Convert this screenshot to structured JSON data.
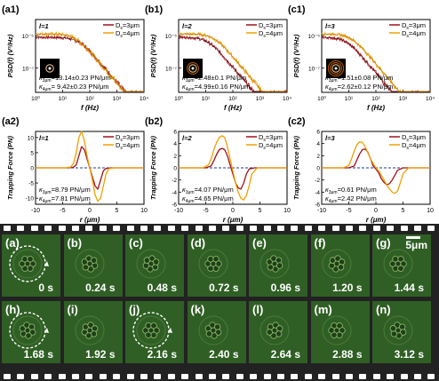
{
  "colors": {
    "c3": "#a0101a",
    "c4": "#f0a000",
    "frame_bg": "#2f5f24",
    "film": "#222222"
  },
  "chart_data": [
    {
      "id": "a1",
      "type": "line",
      "panel_label": "(a1)",
      "charge": "l=1",
      "xlabel": "f (Hz)",
      "ylabel": "PSD(f) (V²/Hz)",
      "xscale": "log",
      "yscale": "log",
      "xlim": [
        1,
        10000
      ],
      "series": [
        {
          "name": "Ds=3μm",
          "color": "#a0101a"
        },
        {
          "name": "Ds=4μm",
          "color": "#f0a000"
        }
      ],
      "stiffness": [
        {
          "label": "κ3μm",
          "value": "=13.14±0.23 PN/μm"
        },
        {
          "label": "κ4μm",
          "value": "= 9.42±0.23 PN/μm"
        }
      ],
      "fc": [
        40,
        30
      ]
    },
    {
      "id": "b1",
      "type": "line",
      "panel_label": "(b1)",
      "charge": "l=2",
      "xlabel": "f (Hz)",
      "ylabel": "PSD(f) (V²/Hz)",
      "xscale": "log",
      "yscale": "log",
      "xlim": [
        1,
        10000
      ],
      "series": [
        {
          "name": "Ds=3μm",
          "color": "#a0101a"
        },
        {
          "name": "Ds=4μm",
          "color": "#f0a000"
        }
      ],
      "stiffness": [
        {
          "label": "κ3μm",
          "value": "=2.48±0.1 PN/μm"
        },
        {
          "label": "κ4μm",
          "value": "=4.99±0.16 PN/μm"
        }
      ],
      "fc": [
        12,
        20
      ]
    },
    {
      "id": "c1",
      "type": "line",
      "panel_label": "(c1)",
      "charge": "l=3",
      "xlabel": "f (Hz)",
      "ylabel": "PSD(f) (V²/Hz)",
      "xscale": "log",
      "yscale": "log",
      "xlim": [
        1,
        10000
      ],
      "series": [
        {
          "name": "Ds=3μm",
          "color": "#a0101a"
        },
        {
          "name": "Ds=4μm",
          "color": "#f0a000"
        }
      ],
      "stiffness": [
        {
          "label": "κ3μm",
          "value": "=1.51±0.08 PN/μm"
        },
        {
          "label": "κ4μm",
          "value": "=2.62±0.12 PN/μm"
        }
      ],
      "fc": [
        8,
        12
      ]
    },
    {
      "id": "a2",
      "type": "line",
      "panel_label": "(a2)",
      "charge": "l=1",
      "xlabel": "r (μm)",
      "ylabel": "Trapping Force (PN)",
      "xlim": [
        -10,
        10
      ],
      "ylim": [
        -12,
        12
      ],
      "xticks": [
        -10,
        -5,
        0,
        5,
        10
      ],
      "yticks": [
        -10,
        -5,
        0,
        5,
        10
      ],
      "series": [
        {
          "name": "Ds=3μm",
          "color": "#a0101a",
          "x": [
            -10,
            -4,
            -3,
            -2.5,
            -2,
            -1.5,
            -1,
            -0.5,
            0,
            0.5,
            1,
            1.5,
            2,
            2.5,
            3,
            4,
            10
          ],
          "y": [
            0,
            0,
            0.2,
            1,
            4,
            7,
            6,
            3,
            0,
            -3,
            -6,
            -7,
            -4,
            -1,
            -0.2,
            0,
            0
          ]
        },
        {
          "name": "Ds=4μm",
          "color": "#f0a000",
          "x": [
            -10,
            -4.5,
            -3.5,
            -3,
            -2.5,
            -2,
            -1.5,
            -1,
            -0.5,
            0,
            0.5,
            1,
            1.5,
            2,
            2.5,
            3,
            3.5,
            4.5,
            10
          ],
          "y": [
            0,
            0,
            0.3,
            1.5,
            5,
            10,
            12,
            9,
            4,
            0,
            -4,
            -9,
            -11,
            -10,
            -6,
            -2,
            -0.3,
            0,
            0
          ]
        }
      ],
      "stiffness": [
        {
          "label": "κ3μm",
          "value": "=8.79 PN/μm"
        },
        {
          "label": "κ4μm",
          "value": "=7.81 PN/μm"
        }
      ]
    },
    {
      "id": "b2",
      "type": "line",
      "panel_label": "(b2)",
      "charge": "l=2",
      "xlabel": "r (μm)",
      "ylabel": "Trapping Force (PN)",
      "xlim": [
        -10,
        10
      ],
      "ylim": [
        -6,
        6
      ],
      "xticks": [
        -10,
        -5,
        0,
        5,
        10
      ],
      "yticks": [
        -6,
        -4,
        -2,
        0,
        2,
        4,
        6
      ],
      "series": [
        {
          "name": "Ds=3μm",
          "color": "#a0101a",
          "x": [
            -10,
            -5,
            -4,
            -3.5,
            -3,
            -2.5,
            -2,
            -1.5,
            -1,
            -0.5,
            0,
            0.5,
            1,
            1.5,
            2,
            2.5,
            3,
            4,
            10
          ],
          "y": [
            0,
            0,
            0.3,
            1.2,
            2.2,
            3,
            3.2,
            3,
            2,
            0.5,
            -1,
            -2.5,
            -3.3,
            -3.5,
            -2.5,
            -1,
            -0.2,
            0,
            0
          ]
        },
        {
          "name": "Ds=4μm",
          "color": "#f0a000",
          "x": [
            -10,
            -5.5,
            -4.5,
            -4,
            -3.5,
            -3,
            -2.5,
            -2,
            -1.5,
            -1,
            -0.5,
            0,
            0.5,
            1,
            1.5,
            2,
            2.5,
            3,
            3.5,
            4.5,
            10
          ],
          "y": [
            0,
            0,
            0.5,
            1.5,
            3,
            4.2,
            5,
            5.3,
            5,
            3.5,
            1.5,
            -0.5,
            -2.5,
            -4,
            -5,
            -5.3,
            -4.5,
            -3,
            -1,
            0,
            0
          ]
        }
      ],
      "stiffness": [
        {
          "label": "κ3μm",
          "value": "=4.07 PN/μm"
        },
        {
          "label": "κ4μm",
          "value": "=4.65 PN/μm"
        }
      ]
    },
    {
      "id": "c2",
      "type": "line",
      "panel_label": "(c2)",
      "charge": "l=3",
      "xlabel": "r (μm)",
      "ylabel": "Trapping Force (PN)",
      "xlim": [
        -10,
        10
      ],
      "ylim": [
        -6,
        6
      ],
      "xticks": [
        -10,
        -5,
        0,
        5,
        10
      ],
      "yticks": [
        -6,
        -4,
        -2,
        0,
        2,
        4,
        6
      ],
      "series": [
        {
          "name": "Ds=3μm",
          "color": "#a0101a",
          "x": [
            -10,
            -5,
            -4,
            -3.5,
            -3,
            -2.5,
            -2,
            -1.5,
            -1,
            -0.5,
            0,
            0.5,
            1,
            1.5,
            2,
            2.5,
            3,
            3.5,
            4,
            5,
            10
          ],
          "y": [
            0,
            0,
            0.3,
            1.3,
            2.3,
            3,
            3.1,
            2.6,
            1.5,
            0.3,
            -0.2,
            -0.8,
            -1.8,
            -2.4,
            -2.8,
            -2.6,
            -2,
            -1.2,
            -0.4,
            0,
            0
          ]
        },
        {
          "name": "Ds=4μm",
          "color": "#f0a000",
          "x": [
            -10,
            -6,
            -5,
            -4.5,
            -4,
            -3.5,
            -3,
            -2.5,
            -2,
            -1.5,
            -1,
            -0.5,
            0,
            0.5,
            1,
            1.5,
            2,
            2.5,
            3,
            3.5,
            4,
            4.5,
            5,
            6,
            10
          ],
          "y": [
            0,
            0,
            0.4,
            1.5,
            2.8,
            3.8,
            4.3,
            4.2,
            3.5,
            2.5,
            1.5,
            0.7,
            0,
            -0.5,
            -1.2,
            -2,
            -2.8,
            -3.5,
            -4,
            -4.2,
            -3.8,
            -2.5,
            -1,
            0,
            0
          ]
        }
      ],
      "stiffness": [
        {
          "label": "κ3μm",
          "value": "=0.61 PN/μm"
        },
        {
          "label": "κ4μm",
          "value": "=2.42 PN/μm"
        }
      ]
    }
  ],
  "frames": [
    {
      "label": "(a)",
      "time": "0 s",
      "circle": true
    },
    {
      "label": "(b)",
      "time": "0.24 s"
    },
    {
      "label": "(c)",
      "time": "0.48 s"
    },
    {
      "label": "(d)",
      "time": "0.72 s"
    },
    {
      "label": "(e)",
      "time": "0.96 s"
    },
    {
      "label": "(f)",
      "time": "1.20 s"
    },
    {
      "label": "(g)",
      "time": "1.44 s"
    },
    {
      "label": "(h)",
      "time": "1.68 s",
      "circle": true
    },
    {
      "label": "(i)",
      "time": "1.92 s"
    },
    {
      "label": "(j)",
      "time": "2.16 s",
      "circle": true
    },
    {
      "label": "(k)",
      "time": "2.40 s"
    },
    {
      "label": "(l)",
      "time": "2.64 s"
    },
    {
      "label": "(m)",
      "time": "2.88 s"
    },
    {
      "label": "(n)",
      "time": "3.12 s"
    }
  ],
  "scalebar_label": "5μm",
  "psd_ticks": {
    "x": [
      "10⁰",
      "10¹",
      "10²",
      "10³",
      "10⁴"
    ],
    "y": [
      "10⁻⁵",
      "10⁻⁷"
    ]
  },
  "legend_text": {
    "ds": "D",
    "ds_sub": "s",
    "kappa": "κ"
  }
}
